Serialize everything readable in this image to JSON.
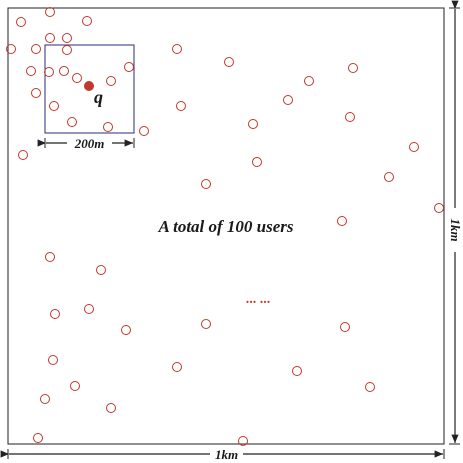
{
  "diagram": {
    "total_label": "A total of 100 users",
    "query_label": "q",
    "ellipsis": "... ...",
    "width_label": "1km",
    "height_label": "1km",
    "region_label": "200m",
    "colors": {
      "frame": "#222222",
      "region": "#2b2b7a",
      "user": "#c0392b",
      "query": "#c0392b"
    }
  }
}
